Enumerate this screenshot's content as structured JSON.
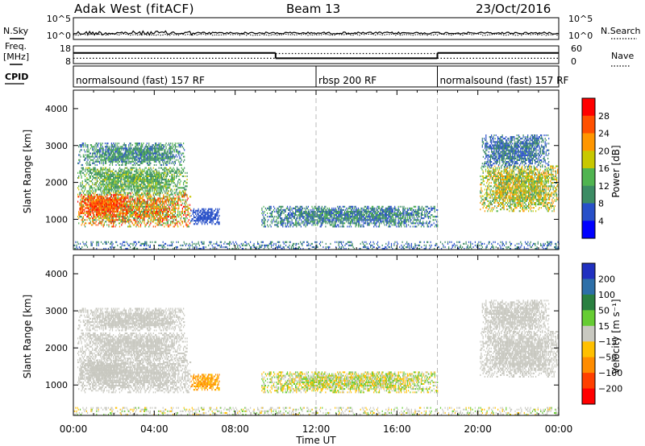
{
  "header": {
    "title": "Adak West (fitACF)",
    "beam": "Beam 13",
    "date": "23/Oct/2016"
  },
  "side_labels": {
    "nsky": "N.Sky",
    "nsearch": "N.Search",
    "freq_line1": "Freq.",
    "freq_line2": "[MHz]",
    "nave": "Nave",
    "cpid": "CPID"
  },
  "noise_panel": {
    "left_ticks": [
      "10^5",
      "10^0"
    ],
    "right_ticks": [
      "10^5",
      "10^0"
    ]
  },
  "freq_panel": {
    "left_ticks": [
      "18",
      "8"
    ],
    "right_ticks": [
      "60",
      "0"
    ]
  },
  "cpid_segments": [
    {
      "label": "normalsound (fast) 157 RF",
      "start_h": 0,
      "end_h": 12
    },
    {
      "label": "rbsp 200 RF",
      "start_h": 12,
      "end_h": 18
    },
    {
      "label": "normalsound (fast) 157 RF",
      "start_h": 18,
      "end_h": 24
    }
  ],
  "x_axis": {
    "label": "Time UT",
    "ticks": [
      "00:00",
      "04:00",
      "08:00",
      "12:00",
      "16:00",
      "20:00",
      "00:00"
    ]
  },
  "power_panel": {
    "ylabel": "Slant Range [km]",
    "yticks": [
      "1000",
      "2000",
      "3000",
      "4000"
    ],
    "colorbar_label": "Power [dB]",
    "colorbar_ticks": [
      "4",
      "8",
      "12",
      "16",
      "20",
      "24",
      "28"
    ],
    "colors": [
      "#0000ff",
      "#2850c8",
      "#3c8c64",
      "#50b450",
      "#c8c800",
      "#ff9600",
      "#ff5000",
      "#ff0000"
    ]
  },
  "velocity_panel": {
    "ylabel": "Slant Range [km]",
    "yticks": [
      "1000",
      "2000",
      "3000",
      "4000"
    ],
    "colorbar_label": "Velocity [m s⁻¹]",
    "colorbar_ticks": [
      "200",
      "100",
      "50",
      "15",
      "−15",
      "−50",
      "−100",
      "−200"
    ],
    "colors": [
      "#2030c0",
      "#2d6fa8",
      "#2a8040",
      "#66cc33",
      "#c8c8c0",
      "#ffc000",
      "#ff8c00",
      "#ff4000",
      "#ff0000"
    ]
  },
  "chart_data": {
    "type": "heatmap",
    "x_range_hours": [
      0,
      24
    ],
    "y_range_km": [
      180,
      4500
    ],
    "freq_mhz": [
      {
        "start_h": 0,
        "end_h": 10,
        "value": 14
      },
      {
        "start_h": 10,
        "end_h": 18,
        "value": 11
      },
      {
        "start_h": 18,
        "end_h": 24,
        "value": 14
      }
    ],
    "nave": [
      {
        "start_h": 0,
        "end_h": 10,
        "value": 18
      },
      {
        "start_h": 10,
        "end_h": 18,
        "value": 34
      },
      {
        "start_h": 18,
        "end_h": 24,
        "value": 18
      }
    ],
    "mode_changes_h": [
      12,
      18
    ],
    "echo_regions": [
      {
        "t0": 0.2,
        "t1": 5.8,
        "r0": 780,
        "r1": 1700,
        "power_db": [
          10,
          30
        ],
        "velocity": [
          -15,
          15
        ]
      },
      {
        "t0": 0.3,
        "t1": 2.7,
        "r0": 1100,
        "r1": 1650,
        "power_db": [
          22,
          30
        ],
        "velocity": [
          -15,
          15
        ]
      },
      {
        "t0": 0.2,
        "t1": 5.6,
        "r0": 1650,
        "r1": 2400,
        "power_db": [
          8,
          18
        ],
        "velocity": [
          -15,
          15
        ]
      },
      {
        "t0": 0.2,
        "t1": 5.5,
        "r0": 2450,
        "r1": 3050,
        "power_db": [
          6,
          14
        ],
        "velocity": [
          -15,
          15
        ]
      },
      {
        "t0": 5.8,
        "t1": 7.2,
        "r0": 850,
        "r1": 1300,
        "power_db": [
          4,
          8
        ],
        "velocity": [
          -100,
          -15
        ]
      },
      {
        "t0": 9.3,
        "t1": 18.0,
        "r0": 780,
        "r1": 1350,
        "power_db": [
          4,
          14
        ],
        "velocity": [
          -50,
          50
        ]
      },
      {
        "t0": 20.1,
        "t1": 24.0,
        "r0": 1200,
        "r1": 2450,
        "power_db": [
          10,
          24
        ],
        "velocity": [
          -15,
          15
        ]
      },
      {
        "t0": 20.2,
        "t1": 23.5,
        "r0": 2400,
        "r1": 3300,
        "power_db": [
          4,
          12
        ],
        "velocity": [
          -15,
          15
        ]
      },
      {
        "t0": 0,
        "t1": 24,
        "r0": 180,
        "r1": 380,
        "power_db": [
          4,
          12
        ],
        "velocity": [
          -50,
          50
        ]
      }
    ]
  }
}
